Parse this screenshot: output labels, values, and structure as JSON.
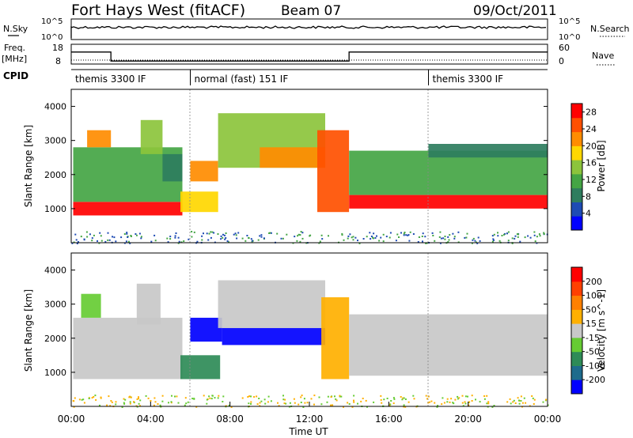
{
  "header": {
    "station": "Fort Hays West (fitACF)",
    "beam": "Beam 07",
    "date": "09/Oct/2011"
  },
  "meta_panels": {
    "nsky_label": "N.Sky",
    "nsky_ticks": [
      "10^5",
      "10^0"
    ],
    "nsearch_label": "N.Search",
    "nsearch_ticks": [
      "10^5",
      "10^0"
    ],
    "freq_label": "Freq.",
    "freq_unit": "[MHz]",
    "freq_ticks": [
      "18",
      "8"
    ],
    "nave_label": "Nave",
    "nave_ticks": [
      "60",
      "0"
    ],
    "cpid_label": "CPID",
    "cpid_segments": [
      {
        "label": "themis 3300 IF",
        "start_h": 0,
        "end_h": 6
      },
      {
        "label": "normal (fast) 151 IF",
        "start_h": 6,
        "end_h": 18
      },
      {
        "label": "themis 3300 IF",
        "start_h": 18,
        "end_h": 24
      }
    ],
    "freq_steps": [
      {
        "start_h": 0,
        "end_h": 2,
        "mhz": 16
      },
      {
        "start_h": 2,
        "end_h": 14,
        "mhz": 10
      },
      {
        "start_h": 14,
        "end_h": 24,
        "mhz": 16
      }
    ]
  },
  "chart_data": [
    {
      "type": "heatmap",
      "quantity": "power",
      "ylabel": "Slant Range [km]",
      "ylim": [
        0,
        4500
      ],
      "yticks": [
        1000,
        2000,
        3000,
        4000
      ],
      "xlim_h": [
        0,
        24
      ],
      "colorbar": {
        "label": "Power [dB]",
        "ticks": [
          4,
          8,
          12,
          16,
          20,
          24,
          28
        ],
        "range": [
          0,
          30
        ],
        "colors": [
          "#0000ff",
          "#1e4bb4",
          "#2e7d5e",
          "#44a544",
          "#8cc43c",
          "#ffd700",
          "#ff8c00",
          "#ff5000",
          "#ff0000"
        ]
      },
      "regions": [
        {
          "t0": 0.1,
          "t1": 5.6,
          "r0": 800,
          "r1": 1200,
          "level": 28
        },
        {
          "t0": 0.1,
          "t1": 5.6,
          "r0": 1200,
          "r1": 2800,
          "level": 12
        },
        {
          "t0": 0.8,
          "t1": 2.0,
          "r0": 2800,
          "r1": 3300,
          "level": 20
        },
        {
          "t0": 3.5,
          "t1": 4.6,
          "r0": 2600,
          "r1": 3600,
          "level": 14
        },
        {
          "t0": 4.6,
          "t1": 5.6,
          "r0": 1800,
          "r1": 2600,
          "level": 8
        },
        {
          "t0": 5.5,
          "t1": 7.4,
          "r0": 900,
          "r1": 1500,
          "level": 18
        },
        {
          "t0": 6.0,
          "t1": 7.4,
          "r0": 1800,
          "r1": 2400,
          "level": 22
        },
        {
          "t0": 7.4,
          "t1": 12.8,
          "r0": 2200,
          "r1": 3800,
          "level": 14
        },
        {
          "t0": 9.5,
          "t1": 12.8,
          "r0": 2200,
          "r1": 2800,
          "level": 22
        },
        {
          "t0": 12.4,
          "t1": 14.0,
          "r0": 900,
          "r1": 3300,
          "level": 26
        },
        {
          "t0": 14.0,
          "t1": 24.0,
          "r0": 1000,
          "r1": 1400,
          "level": 28
        },
        {
          "t0": 14.0,
          "t1": 24.0,
          "r0": 1400,
          "r1": 2700,
          "level": 12
        },
        {
          "t0": 18.0,
          "t1": 24.0,
          "r0": 2500,
          "r1": 2900,
          "level": 8
        }
      ]
    },
    {
      "type": "heatmap",
      "quantity": "velocity",
      "xlabel": "Time UT",
      "ylabel": "Slant Range [km]",
      "ylim": [
        0,
        4500
      ],
      "yticks": [
        1000,
        2000,
        3000,
        4000
      ],
      "xlim_h": [
        0,
        24
      ],
      "xticks": [
        "00:00",
        "04:00",
        "08:00",
        "12:00",
        "16:00",
        "20:00",
        "00:00"
      ],
      "colorbar": {
        "label": "Velocity [m s^-1]",
        "ticks": [
          200,
          100,
          50,
          15,
          -15,
          -50,
          -100,
          -200
        ],
        "range": [
          -250,
          250
        ],
        "colors": [
          "#0000ff",
          "#1e6b8c",
          "#2e8b57",
          "#66cc33",
          "#c8c8c8",
          "#ffb000",
          "#ff8000",
          "#ff4000",
          "#ff0000"
        ]
      },
      "regions": [
        {
          "t0": 0.1,
          "t1": 5.6,
          "r0": 800,
          "r1": 2600,
          "level": 0
        },
        {
          "t0": 0.5,
          "t1": 1.5,
          "r0": 2600,
          "r1": 3300,
          "level": -60
        },
        {
          "t0": 3.3,
          "t1": 4.5,
          "r0": 2400,
          "r1": 3600,
          "level": 0
        },
        {
          "t0": 5.5,
          "t1": 7.5,
          "r0": 800,
          "r1": 1500,
          "level": -100
        },
        {
          "t0": 6.0,
          "t1": 7.6,
          "r0": 1900,
          "r1": 2600,
          "level": -200
        },
        {
          "t0": 7.6,
          "t1": 12.8,
          "r0": 1800,
          "r1": 2300,
          "level": -200
        },
        {
          "t0": 7.4,
          "t1": 12.8,
          "r0": 2300,
          "r1": 3700,
          "level": 20
        },
        {
          "t0": 12.6,
          "t1": 14.0,
          "r0": 800,
          "r1": 3200,
          "level": 60
        },
        {
          "t0": 14.0,
          "t1": 24.0,
          "r0": 900,
          "r1": 2700,
          "level": 0
        }
      ]
    }
  ]
}
